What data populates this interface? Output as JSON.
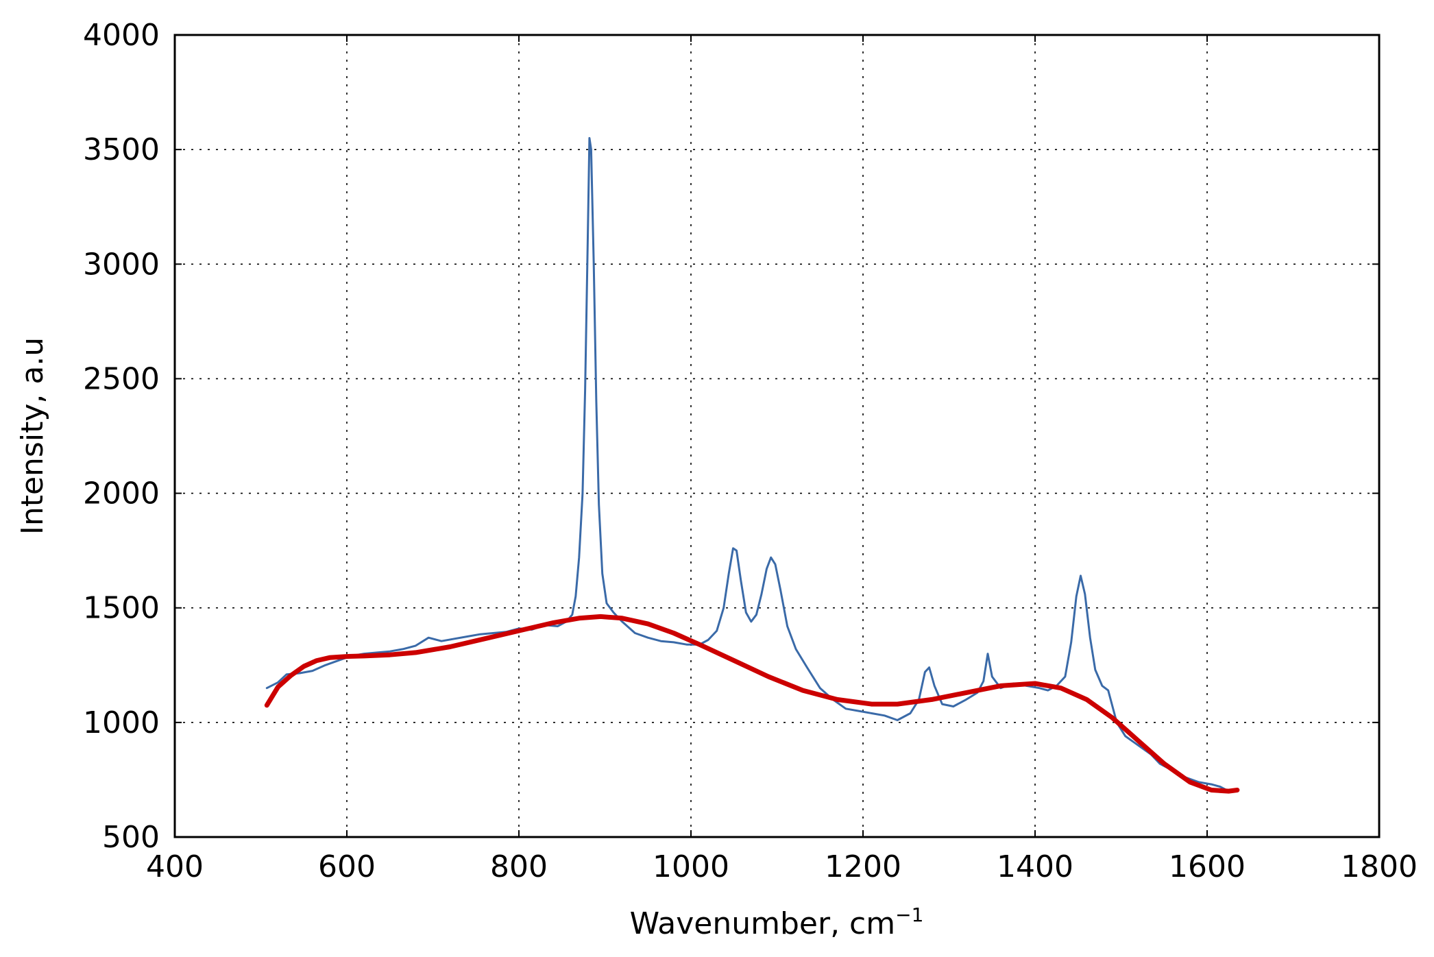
{
  "chart_data": {
    "type": "line",
    "title": "",
    "xlabel": "Wavenumber, cm",
    "xlabel_sup": "−1",
    "ylabel": "Intensity, a.u",
    "xlim": [
      400,
      1800
    ],
    "ylim": [
      500,
      4000
    ],
    "xticks": [
      400,
      600,
      800,
      1000,
      1200,
      1400,
      1600,
      1800
    ],
    "yticks": [
      500,
      1000,
      1500,
      2000,
      2500,
      3000,
      3500,
      4000
    ],
    "grid": true,
    "legend": "none",
    "series": [
      {
        "color": "#3a6aa8",
        "points": [
          [
            507,
            1150
          ],
          [
            520,
            1175
          ],
          [
            530,
            1210
          ],
          [
            545,
            1215
          ],
          [
            560,
            1225
          ],
          [
            575,
            1250
          ],
          [
            590,
            1270
          ],
          [
            605,
            1290
          ],
          [
            620,
            1300
          ],
          [
            635,
            1305
          ],
          [
            650,
            1310
          ],
          [
            665,
            1320
          ],
          [
            680,
            1335
          ],
          [
            695,
            1370
          ],
          [
            710,
            1355
          ],
          [
            725,
            1365
          ],
          [
            740,
            1375
          ],
          [
            755,
            1385
          ],
          [
            770,
            1390
          ],
          [
            785,
            1395
          ],
          [
            800,
            1410
          ],
          [
            815,
            1405
          ],
          [
            830,
            1425
          ],
          [
            845,
            1420
          ],
          [
            855,
            1440
          ],
          [
            862,
            1470
          ],
          [
            866,
            1550
          ],
          [
            870,
            1720
          ],
          [
            874,
            2000
          ],
          [
            877,
            2450
          ],
          [
            880,
            3100
          ],
          [
            882,
            3550
          ],
          [
            884,
            3500
          ],
          [
            887,
            3000
          ],
          [
            890,
            2400
          ],
          [
            893,
            1950
          ],
          [
            897,
            1650
          ],
          [
            902,
            1520
          ],
          [
            910,
            1480
          ],
          [
            920,
            1440
          ],
          [
            935,
            1390
          ],
          [
            950,
            1370
          ],
          [
            965,
            1355
          ],
          [
            980,
            1350
          ],
          [
            995,
            1340
          ],
          [
            1010,
            1340
          ],
          [
            1020,
            1360
          ],
          [
            1030,
            1400
          ],
          [
            1038,
            1500
          ],
          [
            1044,
            1650
          ],
          [
            1049,
            1760
          ],
          [
            1053,
            1750
          ],
          [
            1058,
            1620
          ],
          [
            1064,
            1480
          ],
          [
            1070,
            1440
          ],
          [
            1076,
            1470
          ],
          [
            1082,
            1560
          ],
          [
            1088,
            1670
          ],
          [
            1093,
            1720
          ],
          [
            1098,
            1690
          ],
          [
            1104,
            1580
          ],
          [
            1112,
            1420
          ],
          [
            1122,
            1320
          ],
          [
            1135,
            1240
          ],
          [
            1150,
            1150
          ],
          [
            1165,
            1100
          ],
          [
            1180,
            1060
          ],
          [
            1195,
            1050
          ],
          [
            1210,
            1040
          ],
          [
            1225,
            1030
          ],
          [
            1240,
            1010
          ],
          [
            1255,
            1040
          ],
          [
            1265,
            1100
          ],
          [
            1272,
            1220
          ],
          [
            1277,
            1240
          ],
          [
            1283,
            1160
          ],
          [
            1292,
            1080
          ],
          [
            1305,
            1070
          ],
          [
            1320,
            1100
          ],
          [
            1333,
            1130
          ],
          [
            1340,
            1180
          ],
          [
            1345,
            1300
          ],
          [
            1350,
            1200
          ],
          [
            1360,
            1150
          ],
          [
            1375,
            1170
          ],
          [
            1390,
            1160
          ],
          [
            1405,
            1150
          ],
          [
            1415,
            1140
          ],
          [
            1425,
            1160
          ],
          [
            1435,
            1200
          ],
          [
            1442,
            1350
          ],
          [
            1448,
            1550
          ],
          [
            1453,
            1640
          ],
          [
            1458,
            1560
          ],
          [
            1464,
            1370
          ],
          [
            1470,
            1230
          ],
          [
            1478,
            1160
          ],
          [
            1485,
            1140
          ],
          [
            1495,
            1000
          ],
          [
            1505,
            940
          ],
          [
            1520,
            900
          ],
          [
            1535,
            860
          ],
          [
            1545,
            820
          ],
          [
            1560,
            790
          ],
          [
            1575,
            760
          ],
          [
            1590,
            740
          ],
          [
            1605,
            730
          ],
          [
            1615,
            720
          ],
          [
            1625,
            700
          ],
          [
            1635,
            705
          ]
        ]
      },
      {
        "color": "#cc0000",
        "points": [
          [
            507,
            1075
          ],
          [
            520,
            1155
          ],
          [
            535,
            1205
          ],
          [
            550,
            1245
          ],
          [
            565,
            1270
          ],
          [
            580,
            1283
          ],
          [
            600,
            1288
          ],
          [
            620,
            1290
          ],
          [
            650,
            1295
          ],
          [
            680,
            1305
          ],
          [
            720,
            1330
          ],
          [
            760,
            1365
          ],
          [
            800,
            1400
          ],
          [
            840,
            1435
          ],
          [
            870,
            1455
          ],
          [
            895,
            1462
          ],
          [
            920,
            1455
          ],
          [
            950,
            1430
          ],
          [
            980,
            1390
          ],
          [
            1010,
            1340
          ],
          [
            1050,
            1270
          ],
          [
            1090,
            1200
          ],
          [
            1130,
            1140
          ],
          [
            1170,
            1100
          ],
          [
            1210,
            1080
          ],
          [
            1240,
            1080
          ],
          [
            1280,
            1100
          ],
          [
            1320,
            1130
          ],
          [
            1360,
            1160
          ],
          [
            1400,
            1170
          ],
          [
            1430,
            1150
          ],
          [
            1460,
            1100
          ],
          [
            1490,
            1020
          ],
          [
            1520,
            920
          ],
          [
            1550,
            820
          ],
          [
            1580,
            740
          ],
          [
            1605,
            705
          ],
          [
            1625,
            700
          ],
          [
            1635,
            705
          ]
        ]
      }
    ]
  }
}
